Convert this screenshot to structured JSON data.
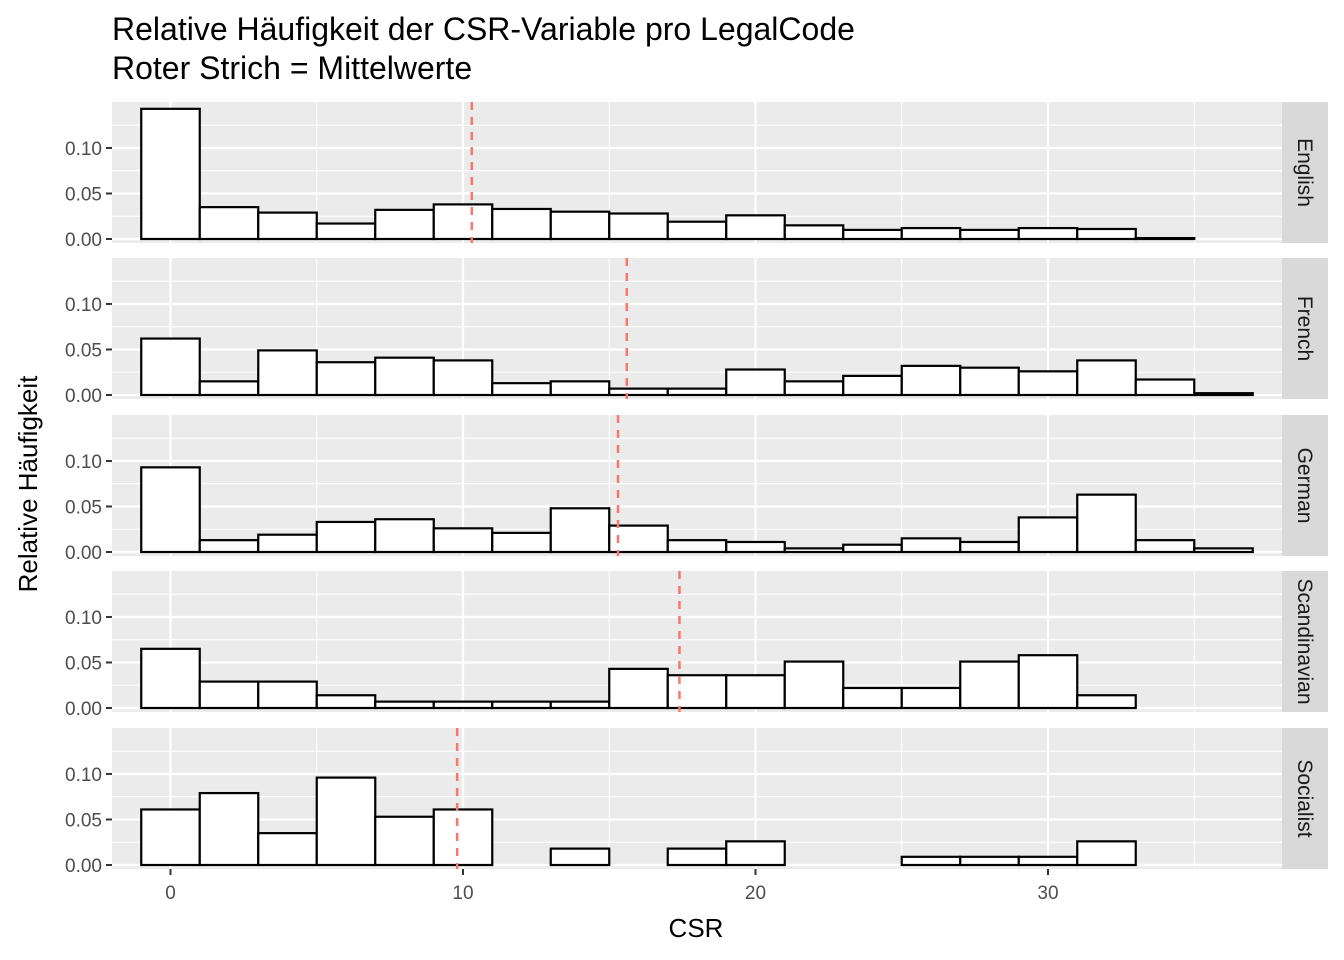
{
  "chart_data": {
    "type": "bar",
    "subtype": "faceted-histogram",
    "title": "Relative Häufigkeit der CSR-Variable pro LegalCode",
    "subtitle": "Roter Strich = Mittelwerte",
    "xlabel": "CSR",
    "ylabel": "Relative Häufigkeit",
    "xlim": [
      -2,
      38
    ],
    "ylim": [
      0,
      0.145
    ],
    "x_ticks": [
      0,
      10,
      20,
      30
    ],
    "x_tick_labels": [
      "0",
      "10",
      "20",
      "30"
    ],
    "y_ticks": [
      0,
      0.05,
      0.1
    ],
    "y_tick_labels": [
      "0.00",
      "0.05",
      "0.10"
    ],
    "bin_width": 2,
    "bin_starts": [
      -1,
      1,
      3,
      5,
      7,
      9,
      11,
      13,
      15,
      17,
      19,
      21,
      23,
      25,
      27,
      29,
      31,
      33,
      35
    ],
    "grid": true,
    "mean_line_color": "#F8766D",
    "bar_fill": "#FFFFFF",
    "bar_stroke": "#000000",
    "panel_background": "#EBEBEB",
    "strip_background": "#D9D9D9",
    "facets": [
      {
        "label": "English",
        "mean": 10.3,
        "values": [
          0.143,
          0.035,
          0.029,
          0.017,
          0.032,
          0.038,
          0.033,
          0.03,
          0.028,
          0.019,
          0.026,
          0.015,
          0.01,
          0.012,
          0.01,
          0.012,
          0.011,
          0.001,
          0.0
        ]
      },
      {
        "label": "French",
        "mean": 15.6,
        "values": [
          0.062,
          0.015,
          0.049,
          0.036,
          0.041,
          0.038,
          0.013,
          0.015,
          0.007,
          0.007,
          0.028,
          0.015,
          0.021,
          0.032,
          0.03,
          0.026,
          0.038,
          0.017,
          0.002
        ]
      },
      {
        "label": "German",
        "mean": 15.3,
        "values": [
          0.093,
          0.013,
          0.019,
          0.033,
          0.036,
          0.026,
          0.021,
          0.048,
          0.029,
          0.013,
          0.011,
          0.004,
          0.008,
          0.015,
          0.011,
          0.038,
          0.063,
          0.013,
          0.004
        ]
      },
      {
        "label": "Scandinavian",
        "mean": 17.4,
        "values": [
          0.065,
          0.029,
          0.029,
          0.014,
          0.007,
          0.007,
          0.007,
          0.007,
          0.043,
          0.036,
          0.036,
          0.051,
          0.022,
          0.022,
          0.051,
          0.058,
          0.014,
          0.0,
          0.0
        ]
      },
      {
        "label": "Socialist",
        "mean": 9.8,
        "values": [
          0.061,
          0.079,
          0.035,
          0.096,
          0.053,
          0.061,
          0.0,
          0.018,
          0.0,
          0.018,
          0.026,
          0.0,
          0.0,
          0.009,
          0.009,
          0.009,
          0.026,
          0.0,
          0.0
        ]
      }
    ]
  }
}
